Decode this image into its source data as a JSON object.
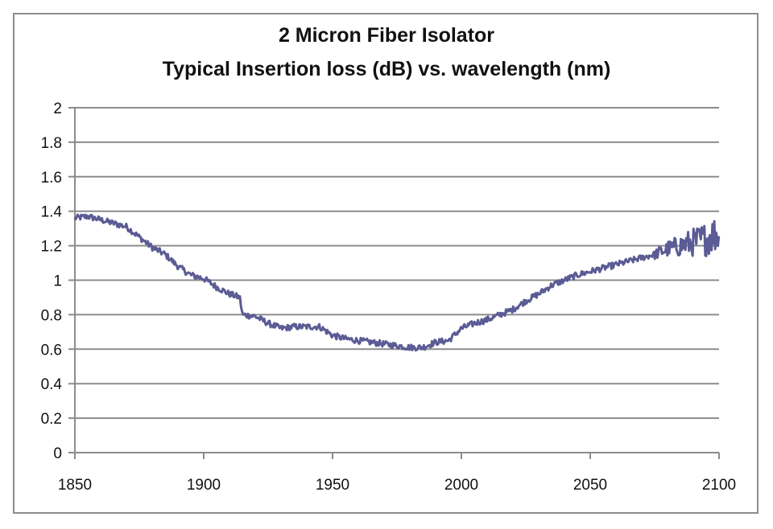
{
  "chart_data": {
    "type": "line",
    "title": "2 Micron Fiber Isolator",
    "subtitle": "Typical Insertion loss (dB) vs. wavelength (nm)",
    "xlabel": "",
    "ylabel": "",
    "xlim": [
      1850,
      2100
    ],
    "ylim": [
      0,
      2
    ],
    "x_ticks": [
      1850,
      1900,
      1950,
      2000,
      2050,
      2100
    ],
    "y_ticks": [
      0,
      0.2,
      0.4,
      0.6,
      0.8,
      1,
      1.2,
      1.4,
      1.6,
      1.8,
      2
    ],
    "x_tick_labels": [
      "1850",
      "1900",
      "1950",
      "2000",
      "2050",
      "2100"
    ],
    "y_tick_labels": [
      "0",
      "0.2",
      "0.4",
      "0.6",
      "0.8",
      "1",
      "1.2",
      "1.4",
      "1.6",
      "1.8",
      "2"
    ],
    "grid": "horizontal",
    "legend": "none",
    "series": [
      {
        "name": "Insertion loss",
        "color": "#5b5b95",
        "x": [
          1850,
          1855,
          1860,
          1865,
          1870,
          1875,
          1880,
          1885,
          1890,
          1895,
          1900,
          1905,
          1910,
          1914,
          1915,
          1920,
          1925,
          1930,
          1935,
          1940,
          1945,
          1950,
          1955,
          1960,
          1965,
          1970,
          1975,
          1980,
          1985,
          1990,
          1995,
          2000,
          2005,
          2010,
          2015,
          2020,
          2025,
          2030,
          2035,
          2040,
          2045,
          2050,
          2055,
          2060,
          2065,
          2070,
          2075,
          2080,
          2085,
          2090,
          2095,
          2100
        ],
        "values": [
          1.36,
          1.37,
          1.35,
          1.33,
          1.31,
          1.25,
          1.19,
          1.15,
          1.08,
          1.03,
          1.01,
          0.96,
          0.92,
          0.9,
          0.8,
          0.79,
          0.75,
          0.72,
          0.73,
          0.73,
          0.73,
          0.68,
          0.66,
          0.65,
          0.64,
          0.63,
          0.62,
          0.61,
          0.61,
          0.64,
          0.65,
          0.72,
          0.75,
          0.77,
          0.8,
          0.83,
          0.88,
          0.92,
          0.97,
          1.0,
          1.03,
          1.05,
          1.07,
          1.09,
          1.11,
          1.13,
          1.15,
          1.18,
          1.2,
          1.22,
          1.24,
          1.28
        ]
      }
    ]
  }
}
